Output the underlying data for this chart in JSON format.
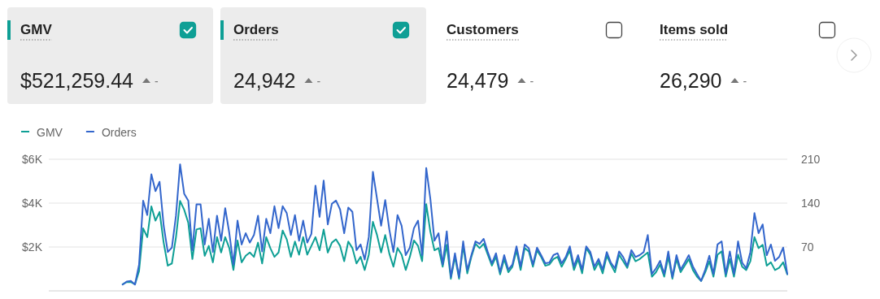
{
  "chart_data": [
    {
      "type": "other",
      "title": "GMV",
      "annotations": [
        "$521,259.44",
        "-"
      ]
    },
    {
      "type": "other",
      "title": "Orders",
      "annotations": [
        "24,942",
        "-"
      ]
    },
    {
      "type": "other",
      "title": "Customers",
      "annotations": [
        "24,479",
        "-"
      ]
    },
    {
      "type": "other",
      "title": "Items sold",
      "annotations": [
        "26,290",
        "-"
      ]
    },
    {
      "type": "line",
      "categories": [
        null,
        null,
        null,
        null,
        null,
        null,
        null,
        null,
        null,
        null,
        null,
        null,
        null,
        null,
        null,
        null,
        null,
        null,
        null,
        null,
        null,
        null,
        null,
        null,
        null,
        null,
        null,
        null,
        null,
        null,
        null,
        null,
        null,
        null,
        null,
        null,
        null,
        null,
        null,
        null,
        null,
        null,
        null,
        null,
        null,
        null,
        null,
        null,
        null,
        null,
        null,
        null,
        null,
        null,
        null,
        null,
        null,
        null,
        null,
        null,
        null,
        null,
        null,
        null,
        null,
        null,
        null,
        null,
        null,
        null,
        null,
        null,
        null,
        null,
        null,
        null,
        null,
        null,
        null,
        null,
        null,
        null,
        null,
        null,
        null,
        null,
        null,
        null,
        null,
        null,
        null,
        null,
        null,
        null,
        null,
        null,
        null,
        null,
        null,
        null,
        null,
        null,
        null,
        null,
        null,
        null,
        null,
        null,
        null,
        null,
        null,
        null,
        null,
        null,
        null,
        null,
        null,
        null,
        null,
        null,
        null,
        null,
        null,
        null,
        null,
        null,
        null,
        null,
        null,
        null,
        null,
        null,
        null,
        null,
        null,
        null,
        null,
        null,
        null,
        null,
        null,
        null,
        null,
        null,
        null,
        null,
        null,
        null,
        null,
        null,
        null,
        null,
        null,
        null,
        null,
        null,
        null,
        null,
        null,
        null,
        null,
        null,
        null,
        null,
        null,
        null,
        null,
        null,
        null,
        null,
        null,
        null,
        null,
        null,
        null,
        null,
        null,
        null,
        null,
        null,
        null
      ],
      "series": [
        {
          "name": "GMV",
          "color": "#0e9f95",
          "values": [
            null,
            null,
            null,
            null,
            null,
            null,
            null,
            null,
            null,
            null,
            null,
            null,
            null,
            null,
            null,
            null,
            null,
            null,
            300,
            400,
            400,
            300,
            900,
            2850,
            2450,
            3850,
            3200,
            3600,
            2200,
            1150,
            1250,
            2450,
            4100,
            3700,
            3100,
            1450,
            2800,
            2850,
            1600,
            2050,
            1300,
            2450,
            1750,
            2450,
            1950,
            950,
            2300,
            1300,
            1600,
            1750,
            1550,
            2200,
            1250,
            2450,
            1950,
            1550,
            1750,
            2750,
            2350,
            1550,
            2250,
            1650,
            2450,
            1650,
            2050,
            2450,
            1850,
            2800,
            1750,
            2200,
            2350,
            2050,
            1350,
            2250,
            1950,
            1250,
            1550,
            950,
            1650,
            3150,
            2550,
            1750,
            2550,
            1700,
            1100,
            1950,
            1650,
            950,
            1550,
            2300,
            2050,
            1350,
            3950,
            2700,
            1850,
            1950,
            1100,
            2100,
            550,
            1550,
            550,
            2050,
            800,
            1550,
            2150,
            1950,
            2150,
            1650,
            1150,
            1550,
            750,
            1450,
            850,
            1100,
            1850,
            950,
            1950,
            1800,
            1100,
            1850,
            1550,
            1150,
            1200,
            1450,
            1550,
            1100,
            1450,
            1850,
            950,
            1450,
            800,
            1950,
            1650,
            950,
            1300,
            800,
            1600,
            1200,
            850,
            1650,
            1350,
            1050,
            1700,
            1350,
            1450,
            1600,
            1750,
            650,
            850,
            1200,
            650,
            1550,
            550,
            1450,
            850,
            1150,
            1450,
            950,
            650,
            450,
            850,
            1350,
            650,
            1650,
            1800,
            650,
            1450,
            650,
            1650,
            1100,
            950,
            1350,
            2450,
            1950,
            2100,
            1150,
            1300,
            950,
            1050,
            1300,
            750
          ]
        },
        {
          "name": "Orders",
          "color": "#3366cc",
          "axis": "y2",
          "values": [
            null,
            null,
            null,
            null,
            null,
            null,
            null,
            null,
            null,
            null,
            null,
            null,
            null,
            null,
            null,
            null,
            null,
            null,
            10,
            15,
            16,
            10,
            42,
            144,
            121,
            186,
            159,
            174,
            104,
            62,
            69,
            120,
            202,
            155,
            144,
            65,
            138,
            138,
            74,
            115,
            62,
            120,
            80,
            132,
            92,
            42,
            112,
            74,
            92,
            77,
            89,
            120,
            63,
            115,
            92,
            135,
            100,
            135,
            124,
            89,
            121,
            80,
            112,
            77,
            91,
            168,
            118,
            176,
            106,
            139,
            144,
            130,
            92,
            133,
            126,
            65,
            74,
            50,
            86,
            190,
            147,
            104,
            145,
            98,
            62,
            121,
            104,
            57,
            69,
            100,
            112,
            57,
            196,
            147,
            80,
            92,
            42,
            95,
            22,
            60,
            22,
            79,
            33,
            57,
            79,
            75,
            83,
            62,
            44,
            60,
            30,
            57,
            34,
            42,
            71,
            39,
            74,
            68,
            42,
            69,
            57,
            44,
            45,
            57,
            60,
            44,
            54,
            71,
            39,
            57,
            34,
            71,
            62,
            39,
            51,
            34,
            62,
            45,
            36,
            63,
            54,
            40,
            65,
            54,
            57,
            62,
            89,
            27,
            36,
            48,
            27,
            63,
            22,
            57,
            34,
            45,
            57,
            39,
            27,
            16,
            34,
            56,
            27,
            74,
            79,
            27,
            63,
            27,
            79,
            45,
            36,
            62,
            124,
            92,
            106,
            57,
            74,
            48,
            54,
            69,
            27
          ]
        }
      ],
      "ylim": [
        0,
        6000
      ],
      "yticks": [
        {
          "value": 2000,
          "label": "$2K"
        },
        {
          "value": 4000,
          "label": "$4K"
        },
        {
          "value": 6000,
          "label": "$6K"
        }
      ],
      "y2lim": [
        0,
        210
      ],
      "y2ticks": [
        70,
        140,
        210
      ],
      "grid": "y",
      "legend": "top left",
      "tick_labels": "y"
    }
  ]
}
